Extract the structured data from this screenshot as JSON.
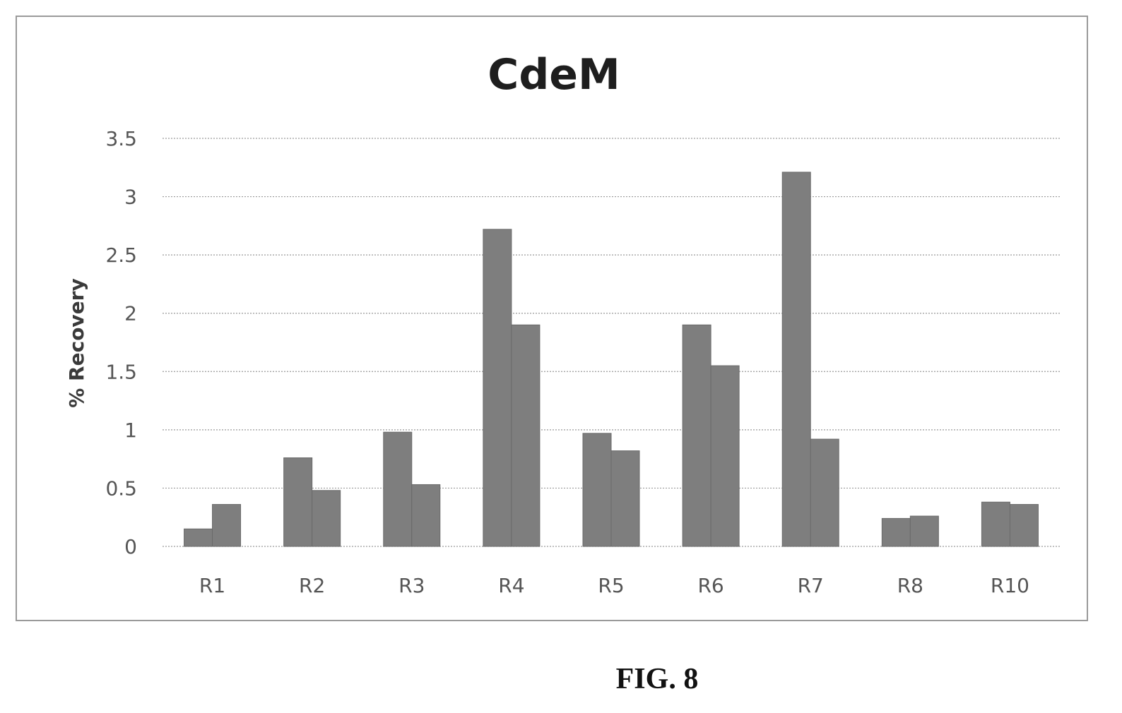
{
  "figure_label": "FIG. 8",
  "chart_data": {
    "type": "bar",
    "title": "CdeM",
    "xlabel": "",
    "ylabel": "% Recovery",
    "categories": [
      "R1",
      "R2",
      "R3",
      "R4",
      "R5",
      "R6",
      "R7",
      "R8",
      "R10"
    ],
    "series": [
      {
        "values": [
          0.15,
          0.76,
          0.98,
          2.72,
          0.97,
          1.9,
          3.21,
          0.24,
          0.38
        ],
        "color": "#7e7e7e"
      },
      {
        "values": [
          0.36,
          0.48,
          0.53,
          1.9,
          0.82,
          1.55,
          0.92,
          0.26,
          0.36
        ],
        "color": "#7e7e7e"
      }
    ],
    "ylim": [
      0,
      3.5
    ],
    "yticks": [
      "0",
      "0.5",
      "1",
      "1.5",
      "2",
      "2.5",
      "3",
      "3.5"
    ],
    "ytick_values": [
      0,
      0.5,
      1,
      1.5,
      2,
      2.5,
      3,
      3.5
    ],
    "grid": true,
    "legend": "none"
  }
}
